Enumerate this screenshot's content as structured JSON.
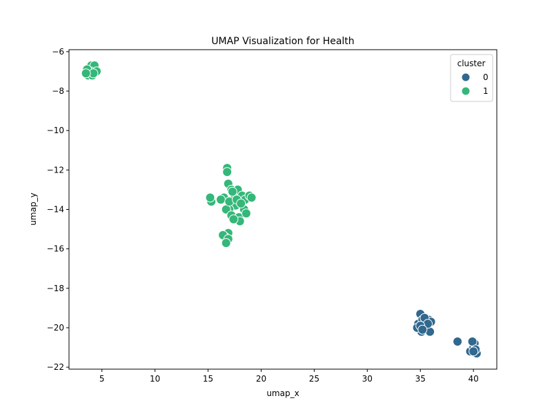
{
  "chart_data": {
    "type": "scatter",
    "title": "UMAP Visualization for Health",
    "xlabel": "umap_x",
    "ylabel": "umap_y",
    "xlim": [
      1.9,
      42.2
    ],
    "ylim": [
      -22.1,
      -5.9
    ],
    "xticks": [
      5,
      10,
      15,
      20,
      25,
      30,
      35,
      40
    ],
    "yticks": [
      -22,
      -20,
      -18,
      -16,
      -14,
      -12,
      -10,
      -8,
      -6
    ],
    "xtick_labels": [
      "5",
      "10",
      "15",
      "20",
      "25",
      "30",
      "35",
      "40"
    ],
    "ytick_labels": [
      "−22",
      "−20",
      "−18",
      "−16",
      "−14",
      "−12",
      "−10",
      "−8",
      "−6"
    ],
    "grid": false,
    "legend": {
      "title": "cluster",
      "placement": "top-right",
      "entries": [
        {
          "label": "0",
          "color": "#31688e"
        },
        {
          "label": "1",
          "color": "#35b779"
        }
      ]
    },
    "series": [
      {
        "name": "0",
        "color": "#31688e",
        "points": [
          [
            34.8,
            -19.8
          ],
          [
            35.0,
            -19.3
          ],
          [
            35.2,
            -19.6
          ],
          [
            35.5,
            -19.9
          ],
          [
            34.9,
            -20.1
          ],
          [
            35.1,
            -20.2
          ],
          [
            35.3,
            -20.0
          ],
          [
            35.6,
            -19.7
          ],
          [
            35.8,
            -19.6
          ],
          [
            36.0,
            -19.7
          ],
          [
            35.9,
            -20.2
          ],
          [
            34.7,
            -20.0
          ],
          [
            35.4,
            -19.5
          ],
          [
            35.7,
            -19.8
          ],
          [
            35.0,
            -19.9
          ],
          [
            35.2,
            -20.1
          ],
          [
            38.5,
            -20.7
          ],
          [
            39.7,
            -21.2
          ],
          [
            40.0,
            -21.0
          ],
          [
            40.1,
            -20.8
          ],
          [
            40.3,
            -21.3
          ],
          [
            39.9,
            -20.7
          ],
          [
            40.2,
            -21.1
          ],
          [
            40.0,
            -21.2
          ]
        ]
      },
      {
        "name": "1",
        "color": "#35b779",
        "points": [
          [
            3.7,
            -7.2
          ],
          [
            3.8,
            -6.8
          ],
          [
            4.0,
            -6.7
          ],
          [
            4.3,
            -6.7
          ],
          [
            3.9,
            -7.0
          ],
          [
            4.5,
            -7.0
          ],
          [
            4.1,
            -7.2
          ],
          [
            3.6,
            -6.9
          ],
          [
            4.2,
            -7.1
          ],
          [
            3.5,
            -7.1
          ],
          [
            16.8,
            -11.9
          ],
          [
            16.8,
            -12.1
          ],
          [
            16.9,
            -12.7
          ],
          [
            17.2,
            -13.0
          ],
          [
            17.5,
            -13.2
          ],
          [
            17.8,
            -13.0
          ],
          [
            16.5,
            -13.4
          ],
          [
            16.2,
            -13.5
          ],
          [
            15.3,
            -13.6
          ],
          [
            15.2,
            -13.4
          ],
          [
            18.2,
            -13.3
          ],
          [
            18.5,
            -13.5
          ],
          [
            18.9,
            -13.3
          ],
          [
            19.1,
            -13.4
          ],
          [
            17.4,
            -13.5
          ],
          [
            17.6,
            -13.8
          ],
          [
            17.0,
            -14.0
          ],
          [
            16.7,
            -14.0
          ],
          [
            17.2,
            -14.3
          ],
          [
            17.9,
            -14.4
          ],
          [
            18.4,
            -14.0
          ],
          [
            18.6,
            -14.2
          ],
          [
            18.0,
            -14.6
          ],
          [
            17.4,
            -14.5
          ],
          [
            17.3,
            -13.1
          ],
          [
            16.9,
            -15.2
          ],
          [
            16.6,
            -15.4
          ],
          [
            16.8,
            -15.6
          ],
          [
            16.4,
            -15.3
          ],
          [
            16.9,
            -15.5
          ],
          [
            16.7,
            -15.7
          ],
          [
            17.0,
            -13.6
          ],
          [
            17.7,
            -13.5
          ],
          [
            18.1,
            -13.7
          ]
        ]
      }
    ]
  }
}
